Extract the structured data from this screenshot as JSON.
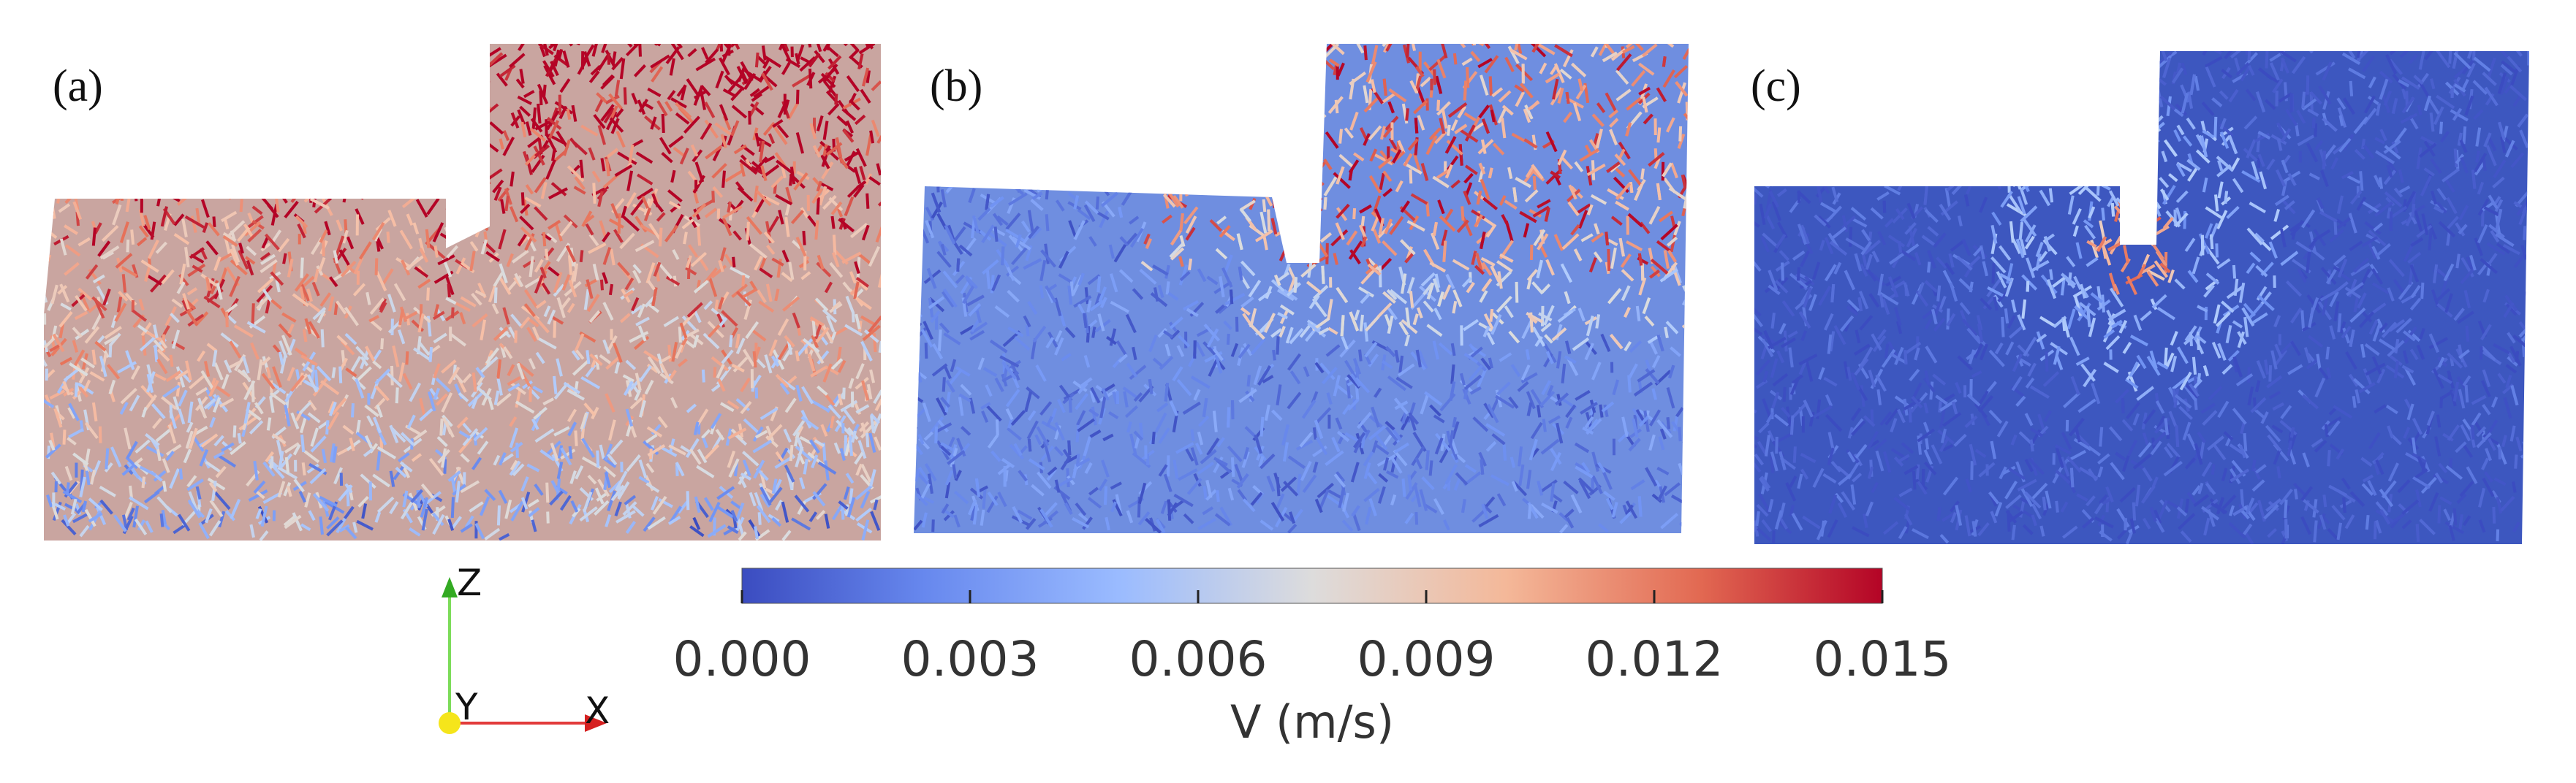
{
  "panels": [
    {
      "label": "(a)",
      "field_level": "high"
    },
    {
      "label": "(b)",
      "field_level": "medium"
    },
    {
      "label": "(c)",
      "field_level": "low"
    }
  ],
  "colorbar": {
    "title": "V (m/s)",
    "ticks": [
      "0.000",
      "0.003",
      "0.006",
      "0.009",
      "0.012",
      "0.015"
    ],
    "min": 0.0,
    "max": 0.015,
    "colormap": [
      "#3b4cc0",
      "#7396f5",
      "#b0cbfc",
      "#dcdddd",
      "#f6bfa6",
      "#e7745b",
      "#b40426"
    ]
  },
  "axes_triad": {
    "z_label": "Z",
    "y_label": "Y",
    "x_label": "X"
  }
}
